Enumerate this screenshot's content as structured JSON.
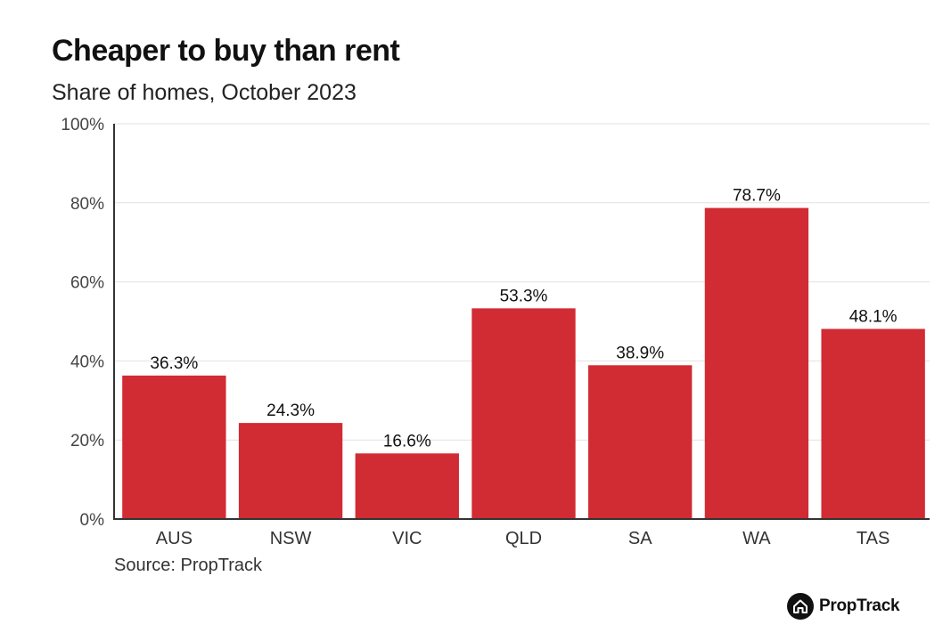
{
  "brand": {
    "name": "PropTrack",
    "icon": "house-icon"
  },
  "source": "Source: PropTrack",
  "colors": {
    "bar": "#d12b34",
    "grid": "#e2e2e2",
    "axis": "#333333"
  },
  "chart_data": {
    "type": "bar",
    "title": "Cheaper to buy than rent",
    "subtitle": "Share of homes, October 2023",
    "xlabel": "",
    "ylabel": "",
    "categories": [
      "AUS",
      "NSW",
      "VIC",
      "QLD",
      "SA",
      "WA",
      "TAS"
    ],
    "values": [
      36.3,
      24.3,
      16.6,
      53.3,
      38.9,
      78.7,
      48.1
    ],
    "data_labels": [
      "36.3%",
      "24.3%",
      "16.6%",
      "53.3%",
      "38.9%",
      "78.7%",
      "48.1%"
    ],
    "ylim": [
      0,
      100
    ],
    "yticks": [
      0,
      20,
      40,
      60,
      80,
      100
    ],
    "ytick_labels": [
      "0%",
      "20%",
      "40%",
      "60%",
      "80%",
      "100%"
    ],
    "grid": true,
    "legend": "none"
  }
}
